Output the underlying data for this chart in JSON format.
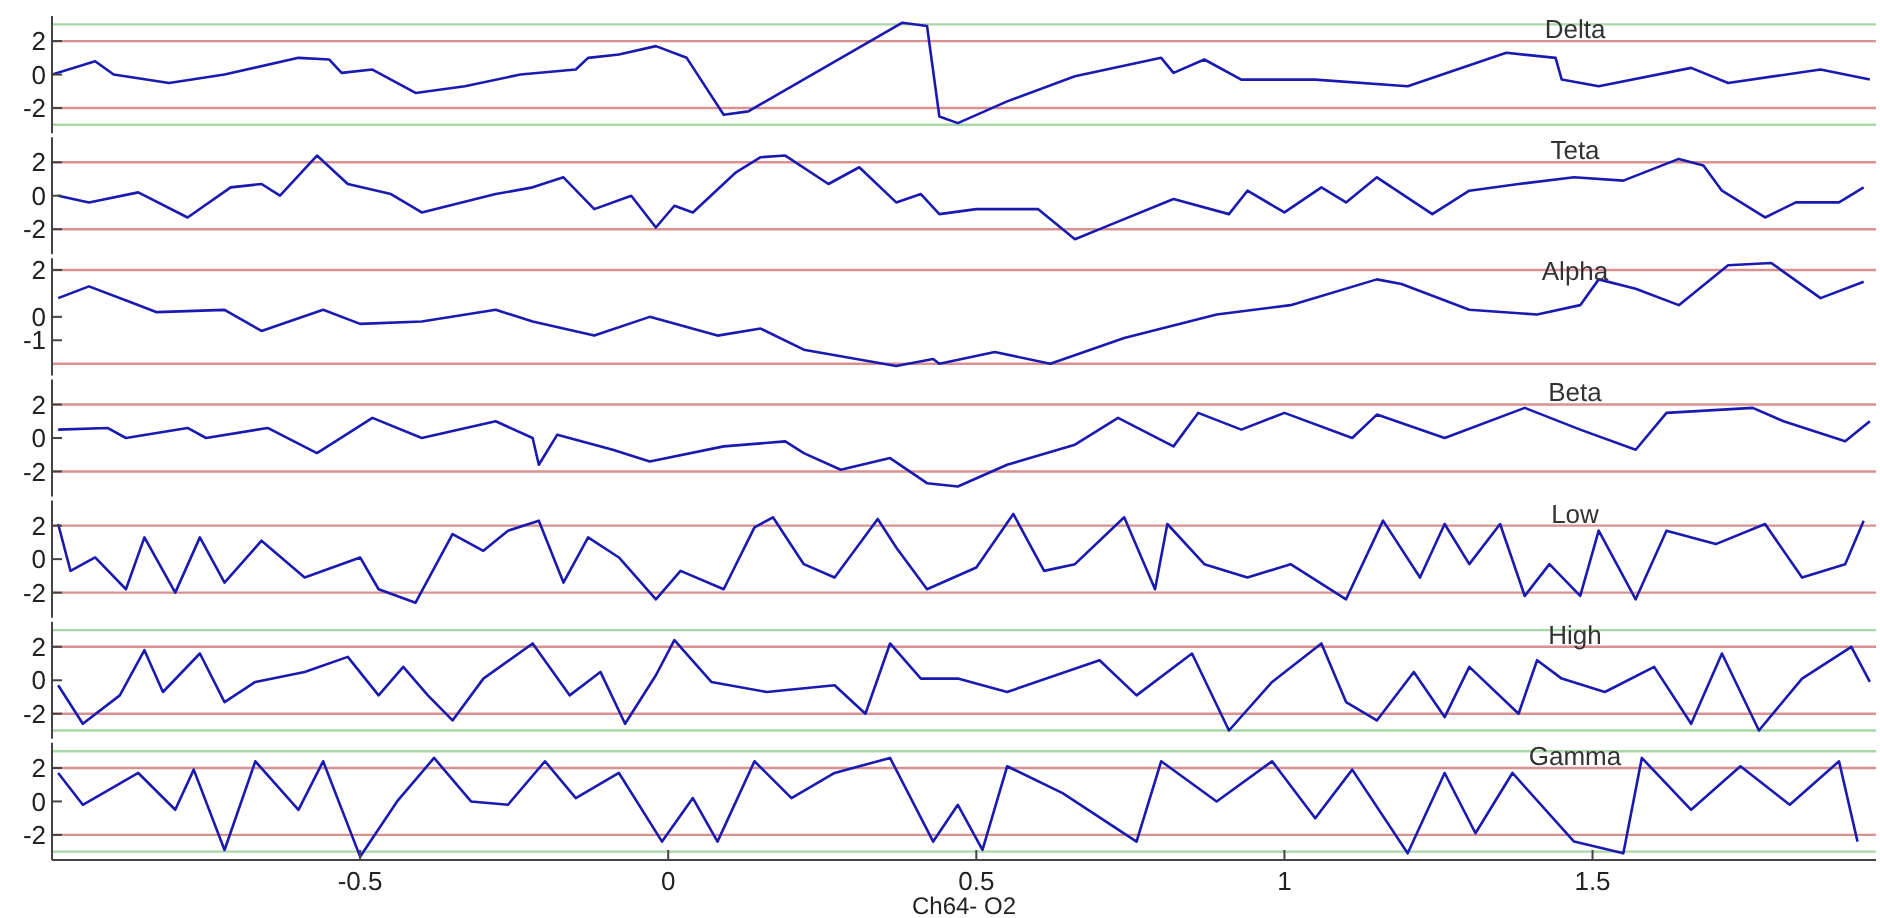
{
  "chart_data": [
    {
      "type": "line",
      "title": "Delta",
      "color": "#1a1ab0",
      "xlim": [
        -1,
        1.96
      ],
      "ylim": [
        -3.5,
        3.5
      ],
      "yticks": [
        -2,
        0,
        2
      ],
      "tick_labels": "y",
      "ref_lines": [
        {
          "axis": "y",
          "value": 2,
          "color": "#d89090"
        },
        {
          "axis": "y",
          "value": -2,
          "color": "#d89090"
        },
        {
          "axis": "y",
          "value": 3,
          "color": "#a8d8a8"
        },
        {
          "axis": "y",
          "value": -3,
          "color": "#a8d8a8"
        }
      ],
      "x": [
        -1,
        -0.93,
        -0.9,
        -0.81,
        -0.72,
        -0.6,
        -0.55,
        -0.53,
        -0.48,
        -0.41,
        -0.33,
        -0.24,
        -0.15,
        -0.13,
        -0.08,
        -0.02,
        0.03,
        0.09,
        0.13,
        0.38,
        0.42,
        0.44,
        0.47,
        0.55,
        0.66,
        0.8,
        0.82,
        0.87,
        0.93,
        1.05,
        1.2,
        1.36,
        1.44,
        1.45,
        1.51,
        1.66,
        1.72,
        1.87,
        1.95
      ],
      "values": [
        0,
        0.8,
        0,
        -0.5,
        0,
        1,
        0.9,
        0.1,
        0.3,
        -1.1,
        -0.7,
        0,
        0.3,
        1,
        1.2,
        1.7,
        1,
        -2.4,
        -2.2,
        3.1,
        2.9,
        -2.5,
        -2.9,
        -1.6,
        -0.1,
        1,
        0.1,
        0.9,
        -0.3,
        -0.3,
        -0.7,
        1.3,
        1,
        -0.3,
        -0.7,
        0.4,
        -0.5,
        0.3,
        -0.3
      ]
    },
    {
      "type": "line",
      "title": "Teta",
      "color": "#1a1ab0",
      "xlim": [
        -1,
        1.96
      ],
      "ylim": [
        -3.5,
        3.5
      ],
      "yticks": [
        -2,
        0,
        2
      ],
      "tick_labels": "y",
      "ref_lines": [
        {
          "axis": "y",
          "value": 2,
          "color": "#d89090"
        },
        {
          "axis": "y",
          "value": -2,
          "color": "#d89090"
        }
      ],
      "x": [
        -0.99,
        -0.94,
        -0.86,
        -0.78,
        -0.71,
        -0.66,
        -0.63,
        -0.57,
        -0.52,
        -0.45,
        -0.4,
        -0.28,
        -0.22,
        -0.17,
        -0.12,
        -0.06,
        -0.02,
        0.01,
        0.04,
        0.11,
        0.15,
        0.19,
        0.26,
        0.31,
        0.37,
        0.41,
        0.44,
        0.5,
        0.6,
        0.66,
        0.72,
        0.82,
        0.91,
        0.94,
        1,
        1.06,
        1.1,
        1.15,
        1.24,
        1.3,
        1.38,
        1.47,
        1.55,
        1.64,
        1.68,
        1.71,
        1.78,
        1.83,
        1.9,
        1.94
      ],
      "values": [
        0,
        -0.4,
        0.2,
        -1.3,
        0.5,
        0.7,
        0,
        2.4,
        0.7,
        0.1,
        -1,
        0.1,
        0.5,
        1.1,
        -0.8,
        0,
        -1.9,
        -0.6,
        -1,
        1.4,
        2.3,
        2.4,
        0.7,
        1.7,
        -0.4,
        0.1,
        -1.1,
        -0.8,
        -0.8,
        -2.6,
        -1.7,
        -0.2,
        -1.1,
        0.3,
        -1,
        0.5,
        -0.4,
        1.1,
        -1.1,
        0.3,
        0.7,
        1.1,
        0.9,
        2.2,
        1.8,
        0.3,
        -1.3,
        -0.4,
        -0.4,
        0.5
      ]
    },
    {
      "type": "line",
      "title": "Alpha",
      "color": "#1a1ab0",
      "xlim": [
        -1,
        1.96
      ],
      "ylim": [
        -2.5,
        2.5
      ],
      "yticks": [
        -1,
        0,
        2
      ],
      "tick_labels": "y",
      "ref_lines": [
        {
          "axis": "y",
          "value": 2,
          "color": "#d89090"
        },
        {
          "axis": "y",
          "value": -2,
          "color": "#d89090"
        }
      ],
      "x": [
        -0.99,
        -0.94,
        -0.87,
        -0.83,
        -0.72,
        -0.66,
        -0.56,
        -0.5,
        -0.4,
        -0.28,
        -0.22,
        -0.12,
        -0.03,
        0.08,
        0.15,
        0.22,
        0.37,
        0.43,
        0.44,
        0.53,
        0.62,
        0.74,
        0.89,
        1.01,
        1.15,
        1.19,
        1.3,
        1.41,
        1.48,
        1.51,
        1.57,
        1.64,
        1.72,
        1.79,
        1.87,
        1.94
      ],
      "values": [
        0.8,
        1.3,
        0.6,
        0.2,
        0.3,
        -0.6,
        0.3,
        -0.3,
        -0.2,
        0.3,
        -0.2,
        -0.8,
        0,
        -0.8,
        -0.5,
        -1.4,
        -2.1,
        -1.8,
        -2,
        -1.5,
        -2,
        -0.9,
        0.1,
        0.5,
        1.6,
        1.4,
        0.3,
        0.1,
        0.5,
        1.6,
        1.2,
        0.5,
        2.2,
        2.3,
        0.8,
        1.5
      ]
    },
    {
      "type": "line",
      "title": "Beta",
      "color": "#1a1ab0",
      "xlim": [
        -1,
        1.96
      ],
      "ylim": [
        -3.5,
        3.5
      ],
      "yticks": [
        -2,
        0,
        2
      ],
      "tick_labels": "y",
      "ref_lines": [
        {
          "axis": "y",
          "value": 2,
          "color": "#d89090"
        },
        {
          "axis": "y",
          "value": -2,
          "color": "#d89090"
        }
      ],
      "x": [
        -0.99,
        -0.91,
        -0.88,
        -0.78,
        -0.75,
        -0.65,
        -0.57,
        -0.48,
        -0.4,
        -0.28,
        -0.22,
        -0.21,
        -0.18,
        -0.09,
        -0.03,
        0.09,
        0.19,
        0.22,
        0.28,
        0.36,
        0.42,
        0.47,
        0.55,
        0.66,
        0.73,
        0.82,
        0.86,
        0.93,
        1,
        1.11,
        1.15,
        1.26,
        1.39,
        1.48,
        1.57,
        1.62,
        1.76,
        1.81,
        1.91,
        1.95
      ],
      "values": [
        0.5,
        0.6,
        0,
        0.6,
        0,
        0.6,
        -0.9,
        1.2,
        0,
        1,
        0,
        -1.6,
        0.2,
        -0.7,
        -1.4,
        -0.5,
        -0.2,
        -0.9,
        -1.9,
        -1.2,
        -2.7,
        -2.9,
        -1.6,
        -0.4,
        1.2,
        -0.5,
        1.5,
        0.5,
        1.5,
        0,
        1.4,
        0,
        1.8,
        0.5,
        -0.7,
        1.5,
        1.8,
        1,
        -0.2,
        1
      ]
    },
    {
      "type": "line",
      "title": "Low",
      "color": "#1a1ab0",
      "xlim": [
        -1,
        1.96
      ],
      "ylim": [
        -3.5,
        3.5
      ],
      "yticks": [
        -2,
        0,
        2
      ],
      "tick_labels": "y",
      "ref_lines": [
        {
          "axis": "y",
          "value": 2,
          "color": "#d89090"
        },
        {
          "axis": "y",
          "value": -2,
          "color": "#d89090"
        }
      ],
      "x": [
        -0.99,
        -0.97,
        -0.93,
        -0.88,
        -0.85,
        -0.8,
        -0.76,
        -0.72,
        -0.66,
        -0.59,
        -0.5,
        -0.47,
        -0.41,
        -0.35,
        -0.3,
        -0.26,
        -0.21,
        -0.17,
        -0.13,
        -0.08,
        -0.02,
        0.02,
        0.09,
        0.14,
        0.17,
        0.22,
        0.27,
        0.34,
        0.37,
        0.42,
        0.5,
        0.56,
        0.61,
        0.66,
        0.74,
        0.79,
        0.81,
        0.87,
        0.94,
        1.01,
        1.1,
        1.16,
        1.22,
        1.26,
        1.3,
        1.35,
        1.39,
        1.43,
        1.48,
        1.51,
        1.57,
        1.62,
        1.7,
        1.78,
        1.84,
        1.91,
        1.94
      ],
      "values": [
        2.1,
        -0.7,
        0.1,
        -1.8,
        1.3,
        -2,
        1.3,
        -1.4,
        1.1,
        -1.1,
        0.1,
        -1.8,
        -2.6,
        1.5,
        0.5,
        1.7,
        2.3,
        -1.4,
        1.3,
        0.1,
        -2.4,
        -0.7,
        -1.8,
        1.9,
        2.5,
        -0.3,
        -1.1,
        2.4,
        0.7,
        -1.8,
        -0.5,
        2.7,
        -0.7,
        -0.3,
        2.5,
        -1.8,
        2.1,
        -0.3,
        -1.1,
        -0.3,
        -2.4,
        2.3,
        -1.1,
        2.1,
        -0.3,
        2.1,
        -2.2,
        -0.3,
        -2.2,
        1.7,
        -2.4,
        1.7,
        0.9,
        2.1,
        -1.1,
        -0.3,
        2.3
      ]
    },
    {
      "type": "line",
      "title": "High",
      "color": "#1a1ab0",
      "xlim": [
        -1,
        1.96
      ],
      "ylim": [
        -3.5,
        3.5
      ],
      "yticks": [
        -2,
        0,
        2
      ],
      "tick_labels": "y",
      "ref_lines": [
        {
          "axis": "y",
          "value": 2,
          "color": "#d89090"
        },
        {
          "axis": "y",
          "value": -2,
          "color": "#d89090"
        },
        {
          "axis": "y",
          "value": 3,
          "color": "#a8d8a8"
        },
        {
          "axis": "y",
          "value": -3,
          "color": "#a8d8a8"
        }
      ],
      "x": [
        -0.99,
        -0.95,
        -0.89,
        -0.85,
        -0.82,
        -0.76,
        -0.72,
        -0.67,
        -0.59,
        -0.52,
        -0.47,
        -0.43,
        -0.39,
        -0.35,
        -0.3,
        -0.22,
        -0.16,
        -0.11,
        -0.07,
        -0.02,
        0.01,
        0.07,
        0.16,
        0.27,
        0.32,
        0.36,
        0.41,
        0.47,
        0.55,
        0.7,
        0.76,
        0.85,
        0.91,
        0.98,
        1.06,
        1.1,
        1.15,
        1.21,
        1.26,
        1.3,
        1.38,
        1.41,
        1.45,
        1.52,
        1.6,
        1.66,
        1.71,
        1.77,
        1.84,
        1.92,
        1.95
      ],
      "values": [
        -0.3,
        -2.6,
        -0.9,
        1.8,
        -0.7,
        1.6,
        -1.3,
        -0.1,
        0.5,
        1.4,
        -0.9,
        0.8,
        -0.9,
        -2.4,
        0.1,
        2.2,
        -0.9,
        0.5,
        -2.6,
        0.3,
        2.4,
        -0.1,
        -0.7,
        -0.3,
        -2,
        2.2,
        0.1,
        0.1,
        -0.7,
        1.2,
        -0.9,
        1.6,
        -3,
        -0.1,
        2.2,
        -1.3,
        -2.4,
        0.5,
        -2.2,
        0.8,
        -2,
        1.2,
        0.1,
        -0.7,
        0.8,
        -2.6,
        1.6,
        -3,
        0.1,
        2,
        -0.1
      ]
    },
    {
      "type": "line",
      "title": "Gamma",
      "color": "#1a1ab0",
      "xlim": [
        -1,
        1.96
      ],
      "ylim": [
        -3.5,
        3.5
      ],
      "yticks": [
        -2,
        0,
        2
      ],
      "xticks": [
        -0.5,
        0,
        0.5,
        1,
        1.5
      ],
      "xlabel": "Ch64- O2",
      "ref_lines": [
        {
          "axis": "y",
          "value": 2,
          "color": "#d89090"
        },
        {
          "axis": "y",
          "value": -2,
          "color": "#d89090"
        },
        {
          "axis": "y",
          "value": 3,
          "color": "#a8d8a8"
        },
        {
          "axis": "y",
          "value": -3,
          "color": "#a8d8a8"
        }
      ],
      "x": [
        -0.99,
        -0.95,
        -0.86,
        -0.8,
        -0.77,
        -0.72,
        -0.67,
        -0.6,
        -0.56,
        -0.5,
        -0.44,
        -0.38,
        -0.32,
        -0.26,
        -0.2,
        -0.15,
        -0.08,
        -0.01,
        0.04,
        0.08,
        0.14,
        0.2,
        0.27,
        0.36,
        0.43,
        0.47,
        0.51,
        0.55,
        0.64,
        0.76,
        0.8,
        0.89,
        0.98,
        1.05,
        1.11,
        1.2,
        1.26,
        1.31,
        1.37,
        1.47,
        1.55,
        1.58,
        1.66,
        1.74,
        1.82,
        1.9,
        1.93
      ],
      "values": [
        1.7,
        -0.2,
        1.7,
        -0.5,
        1.9,
        -2.9,
        2.4,
        -0.5,
        2.4,
        -3.3,
        0,
        2.6,
        0,
        -0.2,
        2.4,
        0.2,
        1.7,
        -2.4,
        0.2,
        -2.4,
        2.4,
        0.2,
        1.7,
        2.6,
        -2.4,
        -0.2,
        -2.9,
        2.1,
        0.5,
        -2.4,
        2.4,
        0,
        2.4,
        -1,
        1.9,
        -3.1,
        1.7,
        -1.9,
        1.7,
        -2.4,
        -3.1,
        2.6,
        -0.5,
        2.1,
        -0.2,
        2.4,
        -2.4
      ]
    }
  ]
}
